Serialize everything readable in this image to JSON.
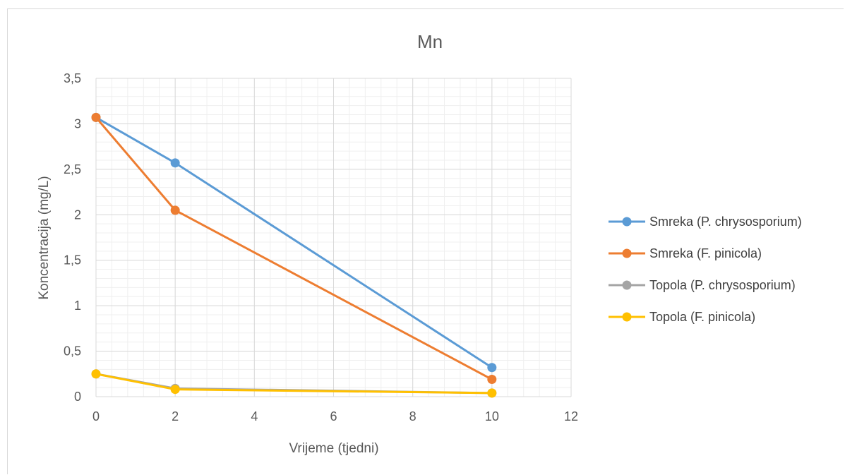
{
  "chart_data": {
    "type": "line",
    "title": "Mn",
    "xlabel": "Vrijeme (tjedni)",
    "ylabel": "Koncentracija (mg/L)",
    "xlim": [
      0,
      12
    ],
    "ylim": [
      0,
      3.5
    ],
    "x_ticks": [
      "0",
      "2",
      "4",
      "6",
      "8",
      "10",
      "12"
    ],
    "y_ticks": [
      "0",
      "0,5",
      "1",
      "1,5",
      "2",
      "2,5",
      "3",
      "3,5"
    ],
    "grid": "major and minor",
    "legend_position": "right",
    "series": [
      {
        "name": "Smreka (P. chrysosporium)",
        "color": "#5b9bd5",
        "x": [
          0,
          2,
          10
        ],
        "y": [
          3.07,
          2.57,
          0.32
        ]
      },
      {
        "name": "Smreka (F. pinicola)",
        "color": "#ed7d31",
        "x": [
          0,
          2,
          10
        ],
        "y": [
          3.07,
          2.05,
          0.19
        ]
      },
      {
        "name": "Topola (P. chrysosporium)",
        "color": "#a5a5a5",
        "x": [
          0,
          2,
          10
        ],
        "y": [
          0.25,
          0.09,
          0.04
        ]
      },
      {
        "name": "Topola (F. pinicola)",
        "color": "#ffc000",
        "x": [
          0,
          2,
          10
        ],
        "y": [
          0.25,
          0.08,
          0.04
        ]
      }
    ]
  }
}
